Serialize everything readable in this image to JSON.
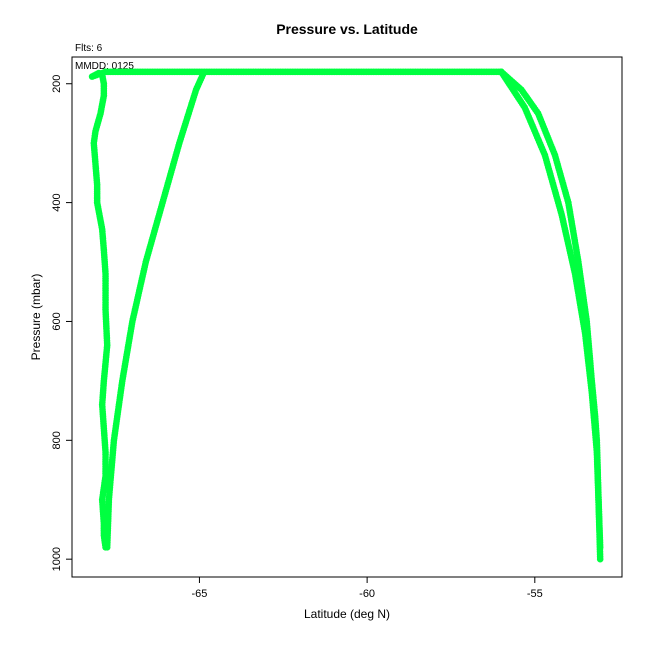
{
  "chart_data": {
    "type": "scatter",
    "title": "Pressure vs. Latitude",
    "xlabel": "Latitude (deg N)",
    "ylabel": "Pressure (mbar)",
    "annotations": {
      "flights": "Flts: 6",
      "date": "MMDD: 0125"
    },
    "xlim": [
      -68.8,
      -52.4
    ],
    "ylim": [
      1030,
      155
    ],
    "y_reversed": true,
    "grid": false,
    "xticks": [
      -65,
      -60,
      -55
    ],
    "yticks": [
      200,
      400,
      600,
      800,
      1000
    ],
    "series": [
      {
        "color": "#00ff40",
        "segments": [
          {
            "x": [
              -67.8,
              -67.85,
              -67.85,
              -67.9,
              -67.8,
              -67.8,
              -67.85,
              -67.9,
              -67.85,
              -67.75,
              -67.8,
              -67.8,
              -67.85,
              -67.9,
              -67.95,
              -68.05,
              -68.05,
              -68.1,
              -68.15,
              -68.1,
              -67.95,
              -67.85,
              -67.85,
              -67.9,
              -68.0,
              -68.2,
              -67.8
            ],
            "y": [
              980,
              960,
              940,
              900,
              860,
              820,
              780,
              740,
              700,
              640,
              580,
              520,
              480,
              445,
              430,
              400,
              370,
              335,
              300,
              280,
              250,
              220,
              200,
              185,
              182,
              188,
              180
            ]
          },
          {
            "x": [
              -67.8,
              -65.0,
              -62.0,
              -59.0,
              -56.0
            ],
            "y": [
              180,
              180,
              180,
              180,
              180
            ]
          },
          {
            "x": [
              -67.75,
              -67.7,
              -67.55,
              -67.3,
              -67.0,
              -66.6,
              -66.1,
              -65.6,
              -65.1,
              -64.9
            ],
            "y": [
              980,
              900,
              800,
              700,
              600,
              500,
              400,
              300,
              210,
              185
            ]
          },
          {
            "x": [
              -56.0,
              -55.4,
              -54.9,
              -54.4,
              -54.0,
              -53.7,
              -53.45,
              -53.3,
              -53.2,
              -53.15,
              -53.1,
              -53.05
            ],
            "y": [
              180,
              210,
              250,
              320,
              400,
              500,
              600,
              700,
              760,
              800,
              900,
              1000
            ]
          },
          {
            "x": [
              -56.0,
              -55.3,
              -54.7,
              -54.2,
              -53.8,
              -53.5,
              -53.3,
              -53.15,
              -53.1,
              -53.05
            ],
            "y": [
              180,
              240,
              320,
              420,
              520,
              620,
              720,
              820,
              900,
              980
            ]
          }
        ]
      }
    ]
  }
}
